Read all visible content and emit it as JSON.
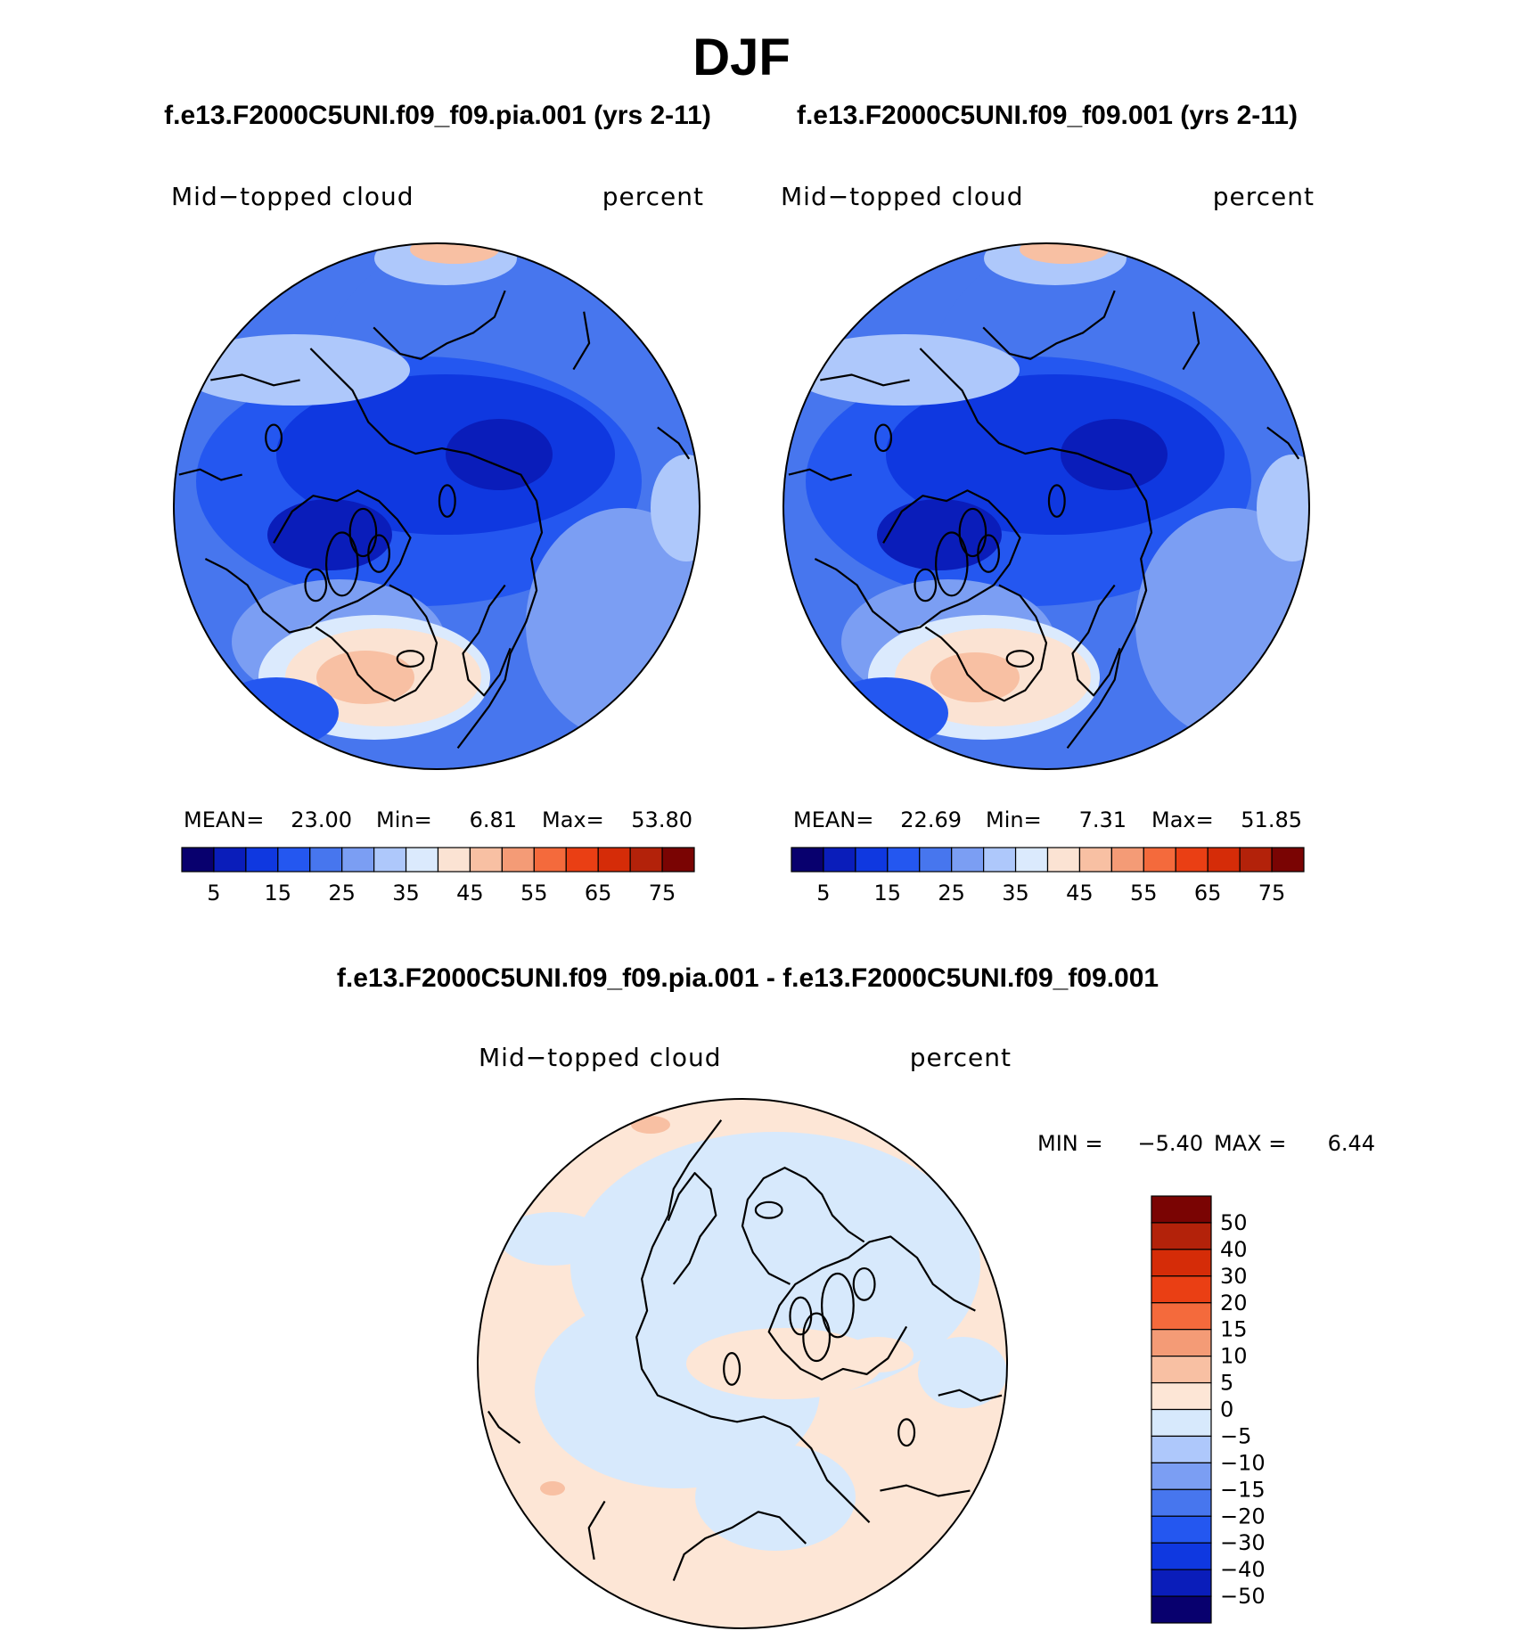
{
  "season": "DJF",
  "palette_absolute": [
    "#08006e",
    "#0a1dba",
    "#0f38e0",
    "#2457f0",
    "#4776ee",
    "#7b9ef3",
    "#aec8fb",
    "#dbeafd",
    "#fbe3d3",
    "#f8c0a3",
    "#f49b76",
    "#f46a3c",
    "#ea3f14",
    "#d52c08",
    "#b3220a",
    "#7a0403"
  ],
  "palette_difference": [
    "#08006e",
    "#0a1dba",
    "#0f38e0",
    "#2457f0",
    "#4776ee",
    "#7b9ef3",
    "#aec8fb",
    "#d7e9fc",
    "#fde6d6",
    "#f8c0a3",
    "#f49b76",
    "#f46a3c",
    "#ea3f14",
    "#d52c08",
    "#b3220a",
    "#7a0403"
  ],
  "chart_data": [
    {
      "type": "heatmap",
      "title": "f.e13.F2000C5UNI.f09_f09.pia.001 (yrs 2-11)",
      "left_label": "Mid−topped cloud",
      "right_label": "percent",
      "stats": {
        "mean_label": "MEAN=",
        "mean": "23.00",
        "min_label": "Min=",
        "min": "6.81",
        "max_label": "Max=",
        "max": "53.80"
      },
      "levels": [
        5,
        10,
        15,
        20,
        25,
        30,
        35,
        40,
        45,
        50,
        55,
        60,
        65,
        70,
        75
      ],
      "colorbar_tick_labels": [
        "5",
        "15",
        "25",
        "35",
        "45",
        "55",
        "65",
        "75"
      ]
    },
    {
      "type": "heatmap",
      "title": "f.e13.F2000C5UNI.f09_f09.001 (yrs 2-11)",
      "left_label": "Mid−topped cloud",
      "right_label": "percent",
      "stats": {
        "mean_label": "MEAN=",
        "mean": "22.69",
        "min_label": "Min=",
        "min": "7.31",
        "max_label": "Max=",
        "max": "51.85"
      },
      "levels": [
        5,
        10,
        15,
        20,
        25,
        30,
        35,
        40,
        45,
        50,
        55,
        60,
        65,
        70,
        75
      ],
      "colorbar_tick_labels": [
        "5",
        "15",
        "25",
        "35",
        "45",
        "55",
        "65",
        "75"
      ]
    },
    {
      "type": "heatmap",
      "title": "f.e13.F2000C5UNI.f09_f09.pia.001 - f.e13.F2000C5UNI.f09_f09.001",
      "left_label": "Mid−topped cloud",
      "right_label": "percent",
      "stats": {
        "min_label": "MIN =",
        "min": "−5.40",
        "max_label": "MAX =",
        "max": "6.44"
      },
      "levels": [
        -50,
        -40,
        -30,
        -20,
        -15,
        -10,
        -5,
        0,
        5,
        10,
        15,
        20,
        30,
        40,
        50
      ],
      "colorbar_tick_labels": [
        "50",
        "40",
        "30",
        "20",
        "15",
        "10",
        "5",
        "0",
        "−5",
        "−10",
        "−15",
        "−20",
        "−30",
        "−40",
        "−50"
      ]
    }
  ]
}
